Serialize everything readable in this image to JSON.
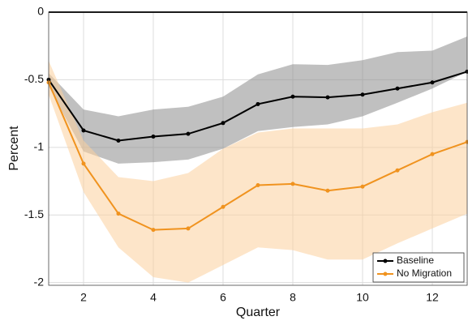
{
  "chart_data": {
    "type": "line",
    "x_label": "Quarter",
    "y_label": "Percent",
    "x": [
      1,
      2,
      3,
      4,
      5,
      6,
      7,
      8,
      9,
      10,
      11,
      12,
      13
    ],
    "xlim": [
      1,
      13
    ],
    "xticks": [
      2,
      4,
      6,
      8,
      10,
      12
    ],
    "ylim": [
      -2.02,
      0
    ],
    "yticks": [
      0,
      -0.5,
      -1,
      -1.5,
      -2
    ],
    "grid": true,
    "zero_line": true,
    "legend": "lower right",
    "series": [
      {
        "name": "Baseline",
        "color": "#000000",
        "band_color": "#8c8c8c",
        "values": [
          -0.5,
          -0.875,
          -0.95,
          -0.92,
          -0.9,
          -0.82,
          -0.68,
          -0.625,
          -0.63,
          -0.61,
          -0.565,
          -0.52,
          -0.44
        ],
        "upper": [
          -0.45,
          -0.72,
          -0.77,
          -0.72,
          -0.7,
          -0.625,
          -0.46,
          -0.385,
          -0.39,
          -0.355,
          -0.295,
          -0.285,
          -0.18
        ],
        "lower": [
          -0.55,
          -1.03,
          -1.12,
          -1.11,
          -1.09,
          -1.01,
          -0.88,
          -0.85,
          -0.83,
          -0.77,
          -0.67,
          -0.565,
          -0.44
        ]
      },
      {
        "name": "No Migration",
        "color": "#f0931f",
        "band_color": "#fbcf9c",
        "values": [
          -0.52,
          -1.12,
          -1.49,
          -1.61,
          -1.6,
          -1.44,
          -1.28,
          -1.27,
          -1.32,
          -1.29,
          -1.17,
          -1.05,
          -0.96
        ],
        "upper": [
          -0.36,
          -0.95,
          -1.22,
          -1.25,
          -1.19,
          -1.01,
          -0.89,
          -0.86,
          -0.86,
          -0.86,
          -0.83,
          -0.74,
          -0.67
        ],
        "lower": [
          -0.61,
          -1.33,
          -1.74,
          -1.96,
          -2.0,
          -1.87,
          -1.74,
          -1.76,
          -1.83,
          -1.83,
          -1.71,
          -1.6,
          -1.49
        ]
      }
    ]
  }
}
